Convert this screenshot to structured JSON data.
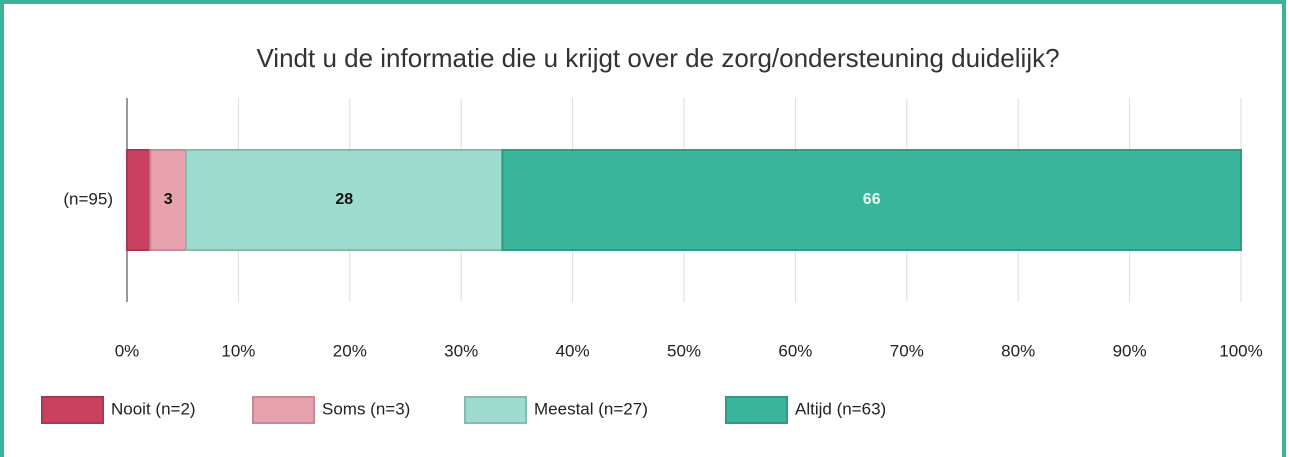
{
  "chart_data": {
    "type": "stacked-barh",
    "title": "Vindt u de informatie die u krijgt over de zorg/ondersteuning duidelijk?",
    "categories": [
      "(n=95)"
    ],
    "series": [
      {
        "name": "Nooit (n=2)",
        "color": "#c8415f",
        "values": [
          2.1
        ],
        "value_labels": [
          null
        ]
      },
      {
        "name": "Soms (n=3)",
        "color": "#e8a2ad",
        "values": [
          3.2
        ],
        "value_labels": [
          "3"
        ]
      },
      {
        "name": "Meestal (n=27)",
        "color": "#9edccf",
        "values": [
          28.4
        ],
        "value_labels": [
          "28"
        ]
      },
      {
        "name": "Altijd (n=63)",
        "color": "#38b59a",
        "values": [
          66.3
        ],
        "value_labels": [
          "66"
        ]
      }
    ],
    "xlim": [
      0,
      100
    ],
    "xticks": [
      {
        "value": 0,
        "label": "0%"
      },
      {
        "value": 10,
        "label": "10%"
      },
      {
        "value": 20,
        "label": "20%"
      },
      {
        "value": 30,
        "label": "30%"
      },
      {
        "value": 40,
        "label": "40%"
      },
      {
        "value": 50,
        "label": "50%"
      },
      {
        "value": 60,
        "label": "60%"
      },
      {
        "value": 70,
        "label": "70%"
      },
      {
        "value": 80,
        "label": "80%"
      },
      {
        "value": 90,
        "label": "90%"
      },
      {
        "value": 100,
        "label": "100%"
      }
    ],
    "grid": true,
    "legend": "bottom-left"
  }
}
